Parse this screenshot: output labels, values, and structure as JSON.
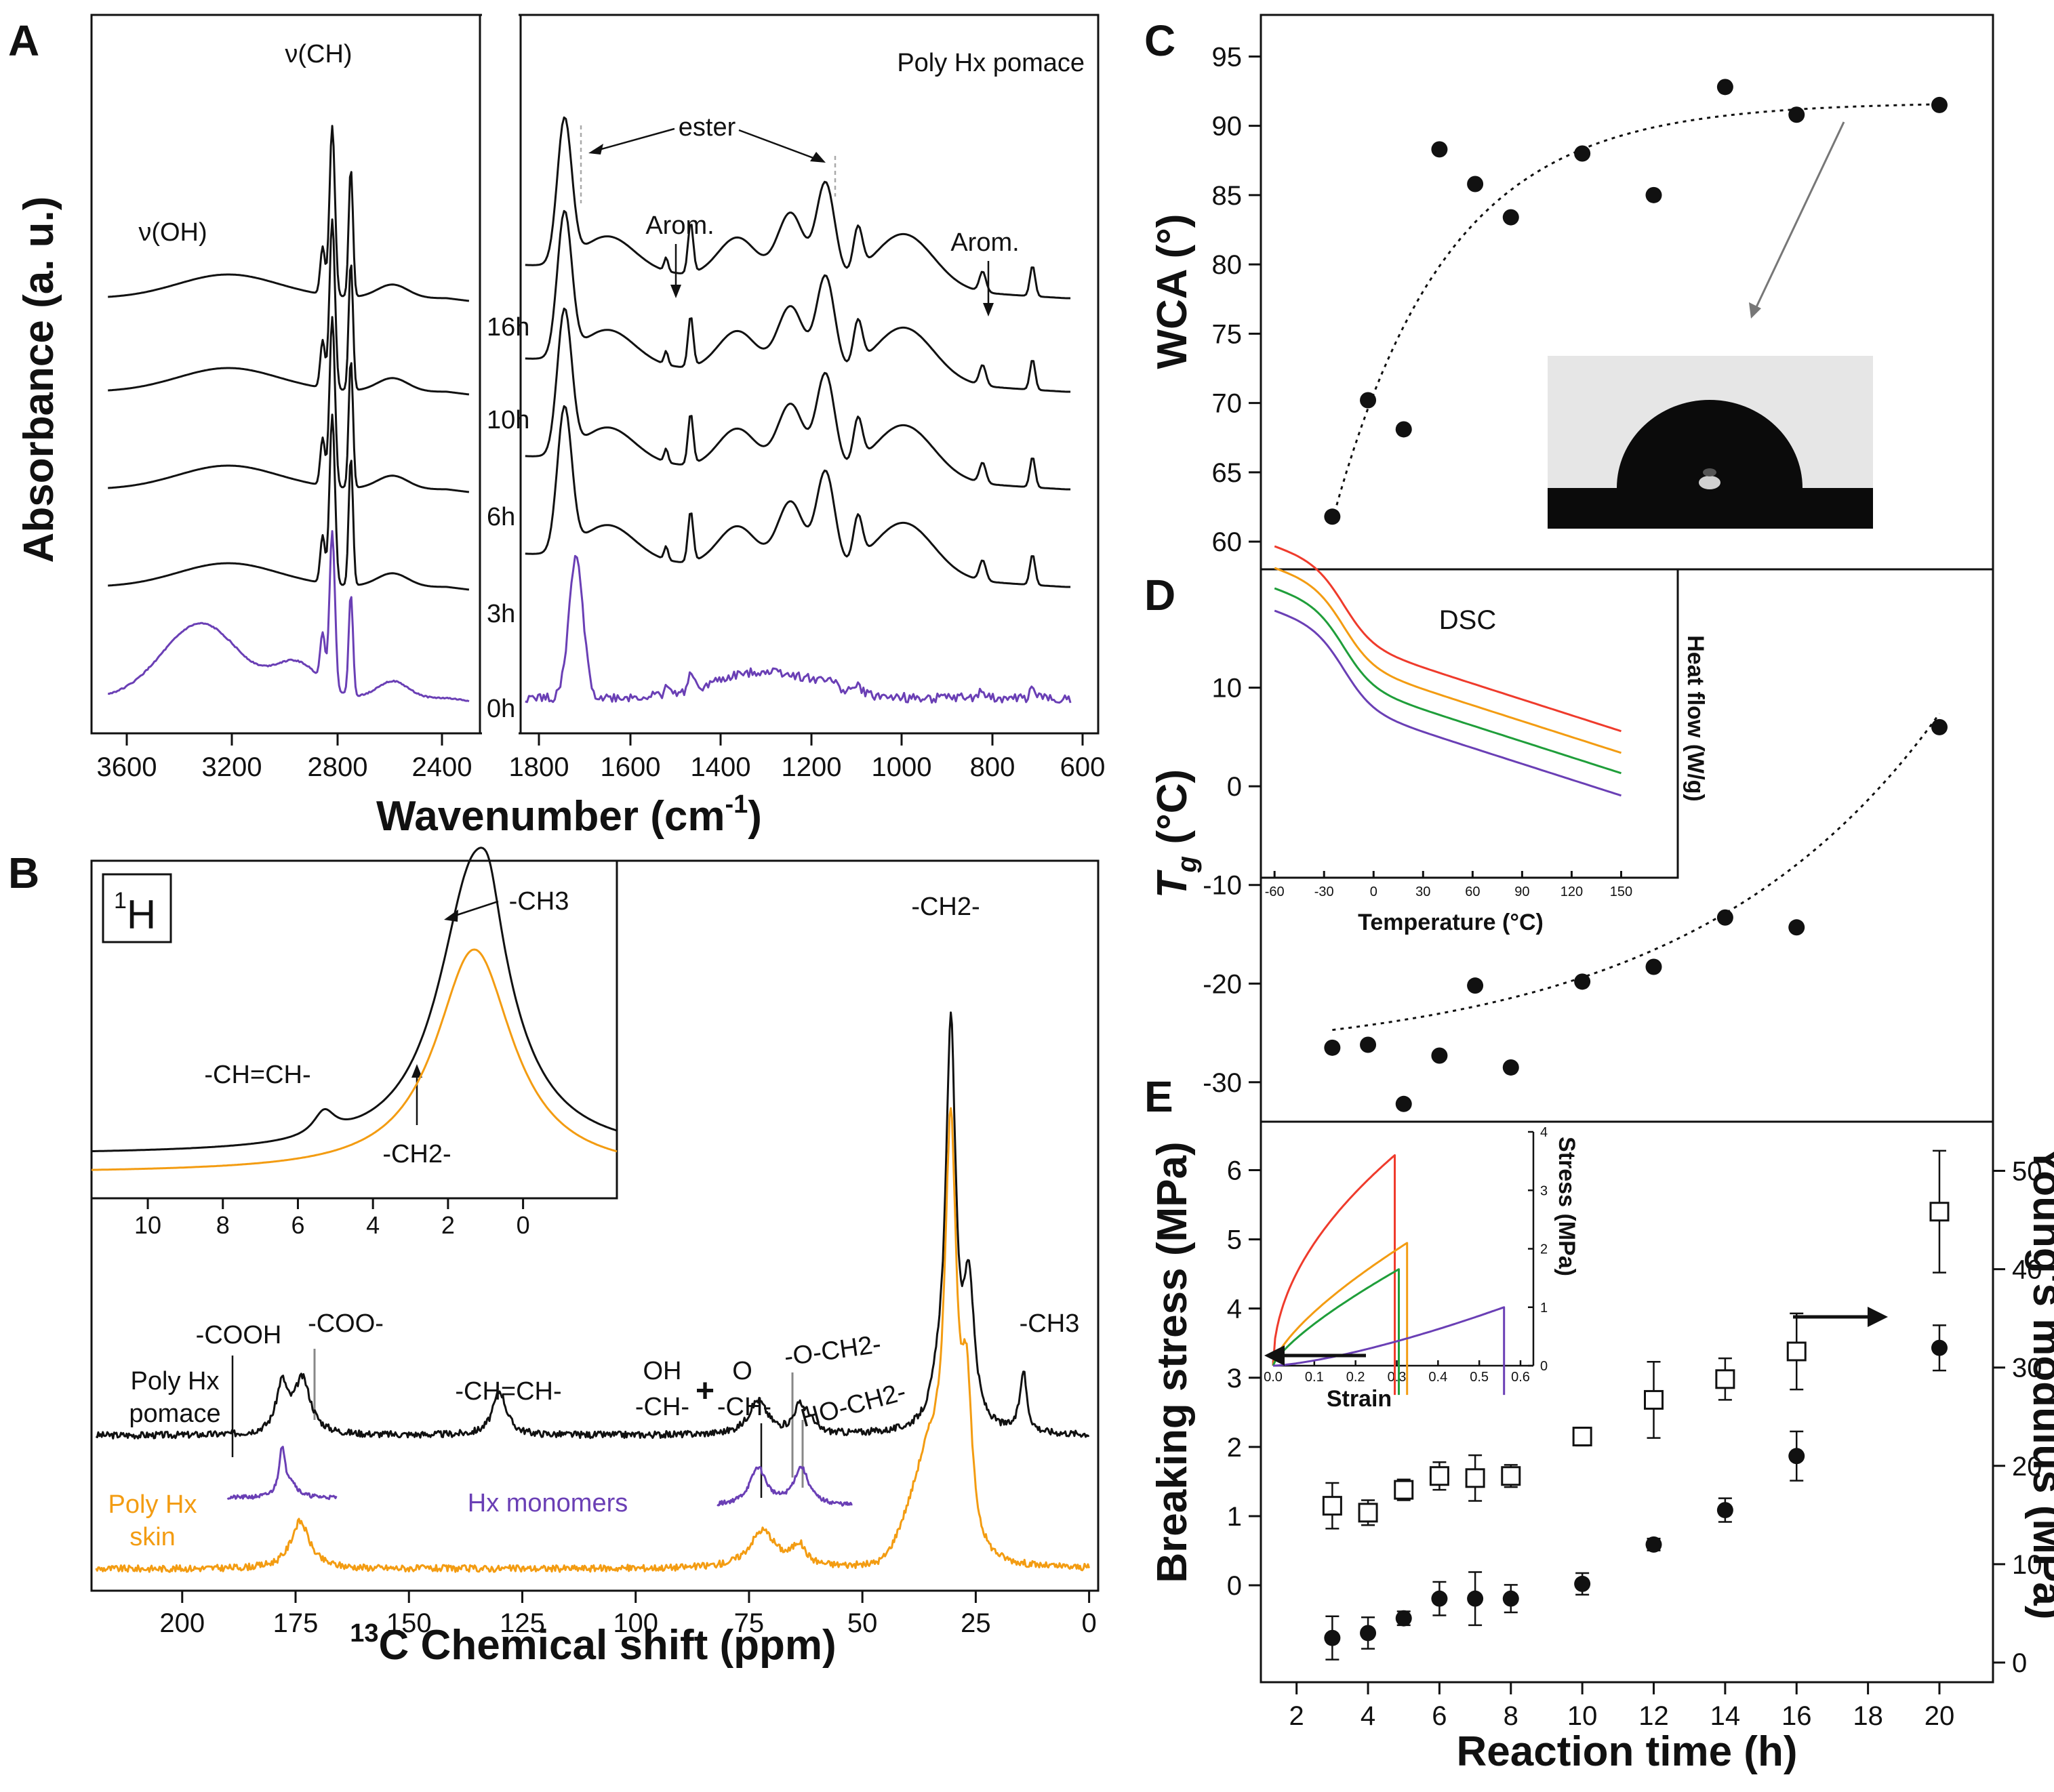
{
  "colors": {
    "black_trace": "#111111",
    "purple": "#6a3fb5",
    "orange": "#f39c12",
    "red": "#ef3b2c",
    "green": "#1f9e3a",
    "gray_arrow": "#777777"
  },
  "chart_data": [
    {
      "panel": "A",
      "type": "line",
      "title": "Poly Hx pomace",
      "xlabel": "Wavenumber (cm-1)",
      "xlabel_main": "Wavenumber (cm",
      "xlabel_sup": "-1",
      "xlabel_close": ")",
      "ylabel": "Absorbance (a. u.)",
      "x_ticks_left": [
        "3600",
        "3200",
        "2800",
        "2400"
      ],
      "x_ticks_right": [
        "1800",
        "1600",
        "1400",
        "1200",
        "1000",
        "800",
        "600"
      ],
      "xlim_left": [
        3800,
        2380
      ],
      "xlim_right": [
        1830,
        580
      ],
      "series": [
        {
          "name": "16h",
          "color": "black"
        },
        {
          "name": "10h",
          "color": "black"
        },
        {
          "name": "6h",
          "color": "black"
        },
        {
          "name": "3h",
          "color": "black"
        },
        {
          "name": "0h",
          "color": "purple"
        }
      ],
      "annotations": {
        "oh": "ν(OH)",
        "ch": "ν(CH)",
        "ester": "ester",
        "arom1": "Arom.",
        "arom2": "Arom."
      },
      "peak_positions_cm1": {
        "ester_co": 1735,
        "ester_coc": 1170,
        "arom_1": 1515,
        "arom_2": 830,
        "ch_stretch": 2920
      }
    },
    {
      "panel": "B",
      "type": "line",
      "xlabel": "13C Chemical shift (ppm)",
      "xlabel_sup": "13",
      "xlabel_main": "C Chemical shift (ppm)",
      "x_ticks": [
        "200",
        "175",
        "150",
        "125",
        "100",
        "75",
        "50",
        "25",
        "0"
      ],
      "xlim": [
        220,
        -2
      ],
      "series": [
        {
          "name": "Poly Hx pomace",
          "color": "black"
        },
        {
          "name": "Hx monomers",
          "color": "purple"
        },
        {
          "name": "Poly Hx skin",
          "color": "orange"
        }
      ],
      "labels": {
        "pomace_line1": "Poly Hx",
        "pomace_line2": "pomace",
        "monomers": "Hx monomers",
        "skin_line1": "Poly Hx",
        "skin_line2": "skin"
      },
      "annotations": {
        "cooh": "-COOH",
        "coo": "-COO-",
        "chch": "-CH=CH-",
        "oh_top": "OH",
        "ch_left": "-CH-",
        "plus": "+",
        "o_top": "O",
        "ch_right": "-CH-",
        "och2": "-O-CH2-",
        "hoch2": "HO-CH2-",
        "ch2": "-CH2-",
        "ch3": "-CH3"
      },
      "peaks_ppm": {
        "cooh": 178,
        "coo": 173,
        "chch": 130,
        "choh": 73,
        "och2": 64,
        "hoch2": 62,
        "ch2_main": 30,
        "ch2_side": 26,
        "ch3": 14
      },
      "inset": {
        "nucleus": "1H",
        "nucleus_sup": "1",
        "nucleus_main": "H",
        "x_ticks": [
          "10",
          "8",
          "6",
          "4",
          "2",
          "0"
        ],
        "xlim": [
          11.5,
          -2.5
        ],
        "annotations": {
          "ch3": "-CH3",
          "chch": "-CH=CH-",
          "ch2": "-CH2-"
        },
        "peaks_ppm": {
          "ch2": 1.3,
          "ch3": 0.9,
          "chch": 5.3
        }
      }
    },
    {
      "panel": "C",
      "type": "scatter",
      "ylabel": "WCA (°)",
      "x": [
        3,
        4,
        5,
        6,
        7,
        8,
        10,
        12,
        14,
        16,
        20
      ],
      "values": [
        61.8,
        70.2,
        68.1,
        88.3,
        85.8,
        83.4,
        88.0,
        85.0,
        92.8,
        90.8,
        91.5
      ],
      "y_ticks": [
        "60",
        "65",
        "70",
        "75",
        "80",
        "85",
        "90",
        "95"
      ],
      "ylim": [
        58,
        98
      ],
      "fit": "dotted exponential trend"
    },
    {
      "panel": "D",
      "type": "scatter",
      "ylabel": "Tg (°C)",
      "ylabel_main": "T",
      "ylabel_sub": "g",
      "ylabel_unit": " (°C)",
      "x": [
        3,
        4,
        5,
        6,
        7,
        8,
        10,
        12,
        14,
        16,
        20
      ],
      "values": [
        -26.5,
        -26.2,
        -32.2,
        -27.3,
        -20.2,
        -28.5,
        -19.8,
        -18.3,
        -13.3,
        -14.3,
        6.0
      ],
      "y_ticks": [
        "10",
        "0",
        "-10",
        "-20",
        "-30"
      ],
      "ylim": [
        -34,
        22
      ],
      "inset": {
        "title": "DSC",
        "xlabel": "Temperature (°C)",
        "ylabel": "Heat flow (W/g)",
        "x_ticks": [
          "-60",
          "-30",
          "0",
          "30",
          "60",
          "90",
          "120",
          "150"
        ],
        "xlim": [
          -65,
          165
        ],
        "series_colors": [
          "red",
          "orange",
          "green",
          "purple"
        ]
      }
    },
    {
      "panel": "E",
      "type": "scatter",
      "xlabel": "Reaction time (h)",
      "ylabel_left": "Breaking stress (MPa)",
      "ylabel_right": "Young's modulus (MPa)",
      "x_ticks": [
        "2",
        "4",
        "6",
        "8",
        "10",
        "12",
        "14",
        "16",
        "18",
        "20"
      ],
      "xlim": [
        1,
        21.5
      ],
      "series": [
        {
          "name": "Breaking stress",
          "axis": "left",
          "marker": "open-square",
          "x": [
            3,
            4,
            5,
            6,
            7,
            8,
            10,
            12,
            14,
            16,
            20
          ],
          "values": [
            1.15,
            1.05,
            1.38,
            1.58,
            1.55,
            1.58,
            2.15,
            2.68,
            2.98,
            3.38,
            5.4
          ],
          "errors": [
            0.33,
            0.18,
            0.15,
            0.2,
            0.33,
            0.16,
            0.13,
            0.55,
            0.3,
            0.55,
            0.88
          ]
        },
        {
          "name": "Young's modulus",
          "axis": "right",
          "marker": "filled-circle",
          "x": [
            3,
            4,
            5,
            6,
            7,
            8,
            10,
            12,
            14,
            16,
            20
          ],
          "values": [
            2.5,
            3.0,
            4.5,
            6.5,
            6.5,
            6.5,
            8.0,
            12.0,
            15.5,
            21.0,
            32.0
          ],
          "errors": [
            2.2,
            1.6,
            0.7,
            1.7,
            2.7,
            1.4,
            1.1,
            0.6,
            1.2,
            2.5,
            2.3
          ]
        }
      ],
      "y_ticks_left": [
        "0",
        "1",
        "2",
        "3",
        "4",
        "5",
        "6"
      ],
      "ylim_left": [
        -1.4,
        6.7
      ],
      "y_ticks_right": [
        "0",
        "10",
        "20",
        "30",
        "40",
        "50"
      ],
      "ylim_right": [
        -2,
        55
      ],
      "inset": {
        "xlabel": "Strain",
        "ylabel": "Stress (MPa)",
        "x_ticks": [
          "0.0",
          "0.1",
          "0.2",
          "0.3",
          "0.4",
          "0.5",
          "0.6"
        ],
        "y_ticks": [
          "0",
          "1",
          "2",
          "3",
          "4"
        ],
        "series_colors": [
          "red",
          "orange",
          "green",
          "purple"
        ]
      }
    }
  ]
}
